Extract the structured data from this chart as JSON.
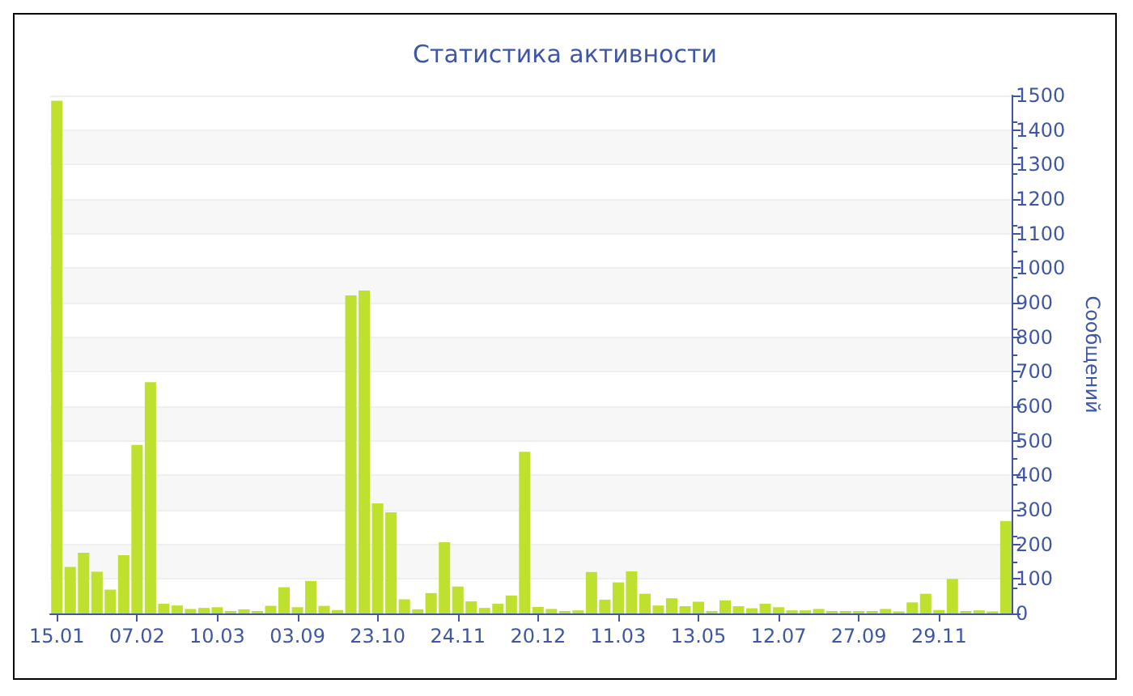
{
  "chart_data": {
    "type": "bar",
    "title": "Статистика активности",
    "ylabel": "Сообщений",
    "categories": [
      "15.01",
      null,
      null,
      null,
      null,
      null,
      "07.02",
      null,
      null,
      null,
      null,
      null,
      "10.03",
      null,
      null,
      null,
      null,
      null,
      "03.09",
      null,
      null,
      null,
      null,
      null,
      "23.10",
      null,
      null,
      null,
      null,
      null,
      "24.11",
      null,
      null,
      null,
      null,
      null,
      "20.12",
      null,
      null,
      null,
      null,
      null,
      "11.03",
      null,
      null,
      null,
      null,
      null,
      "13.05",
      null,
      null,
      null,
      null,
      null,
      "12.07",
      null,
      null,
      null,
      null,
      null,
      "27.09",
      null,
      null,
      null,
      null,
      null,
      "29.11",
      null,
      null,
      null,
      null,
      null
    ],
    "values": [
      1485,
      135,
      176,
      121,
      69,
      169,
      488,
      670,
      28,
      23,
      13,
      16,
      18,
      7,
      12,
      7,
      22,
      76,
      18,
      94,
      22,
      10,
      921,
      935,
      319,
      293,
      41,
      12,
      59,
      206,
      78,
      35,
      16,
      28,
      52,
      468,
      19,
      13,
      7,
      9,
      120,
      40,
      90,
      122,
      57,
      23,
      44,
      21,
      34,
      7,
      38,
      21,
      15,
      28,
      18,
      9,
      9,
      13,
      7,
      7,
      7,
      7,
      13,
      6,
      32,
      57,
      10,
      100,
      7,
      9,
      6,
      268
    ],
    "color": "#bde12e",
    "ylim": [
      0,
      1500
    ],
    "yticks": [
      0,
      100,
      200,
      300,
      400,
      500,
      600,
      700,
      800,
      900,
      1000,
      1100,
      1200,
      1300,
      1400,
      1500
    ],
    "grid": "y"
  }
}
